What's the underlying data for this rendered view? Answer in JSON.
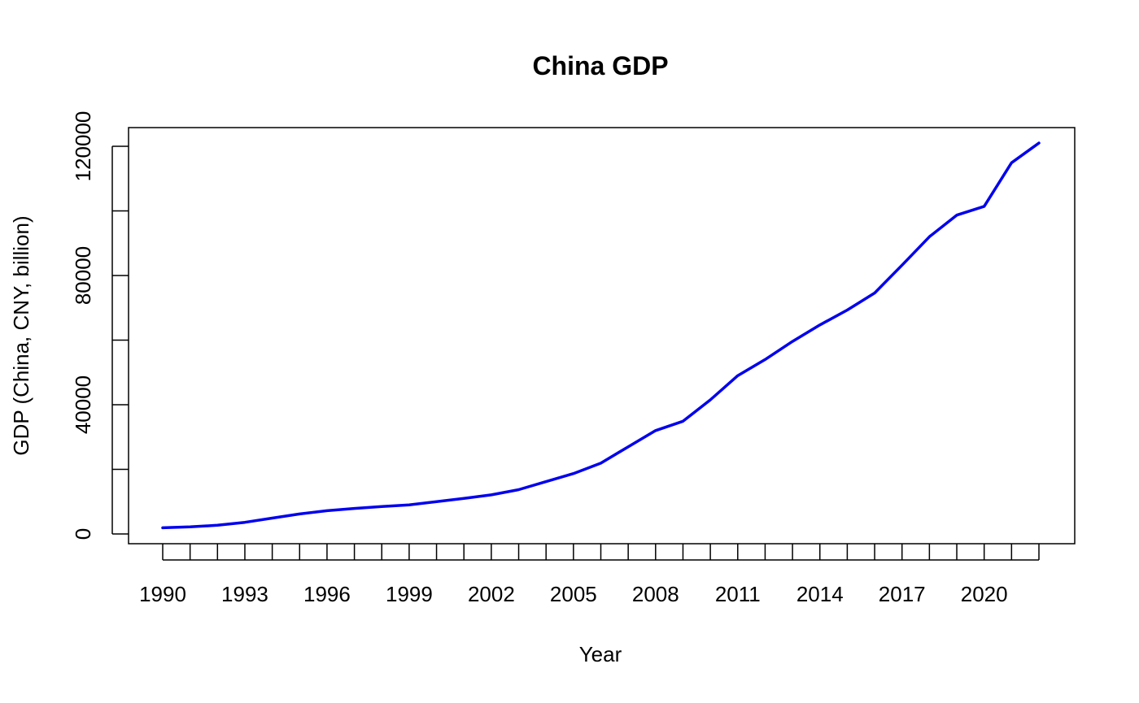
{
  "chart_data": {
    "type": "line",
    "title": "China GDP",
    "xlabel": "Year",
    "ylabel": "GDP (China, CNY, billion)",
    "xlim": [
      1990,
      2022
    ],
    "ylim": [
      0,
      120000
    ],
    "grid": false,
    "x_tick_labels": [
      "1990",
      "1993",
      "1996",
      "1999",
      "2002",
      "2005",
      "2008",
      "2011",
      "2014",
      "2017",
      "2020"
    ],
    "y_tick_labels": [
      "0",
      "40000",
      "80000",
      "120000"
    ],
    "series": [
      {
        "color": "#0000ee",
        "x": [
          1990,
          1991,
          1992,
          1993,
          1994,
          1995,
          1996,
          1997,
          1998,
          1999,
          2000,
          2001,
          2002,
          2003,
          2004,
          2005,
          2006,
          2007,
          2008,
          2009,
          2010,
          2011,
          2012,
          2013,
          2014,
          2015,
          2016,
          2017,
          2018,
          2019,
          2020,
          2021,
          2022
        ],
        "values": [
          1900,
          2200,
          2700,
          3600,
          4900,
          6200,
          7200,
          7900,
          8500,
          9000,
          10000,
          11000,
          12100,
          13700,
          16200,
          18700,
          21900,
          27000,
          32000,
          34900,
          41500,
          49000,
          54000,
          59600,
          64700,
          69300,
          74600,
          83200,
          92000,
          98700,
          101400,
          114900,
          121000
        ]
      }
    ]
  }
}
